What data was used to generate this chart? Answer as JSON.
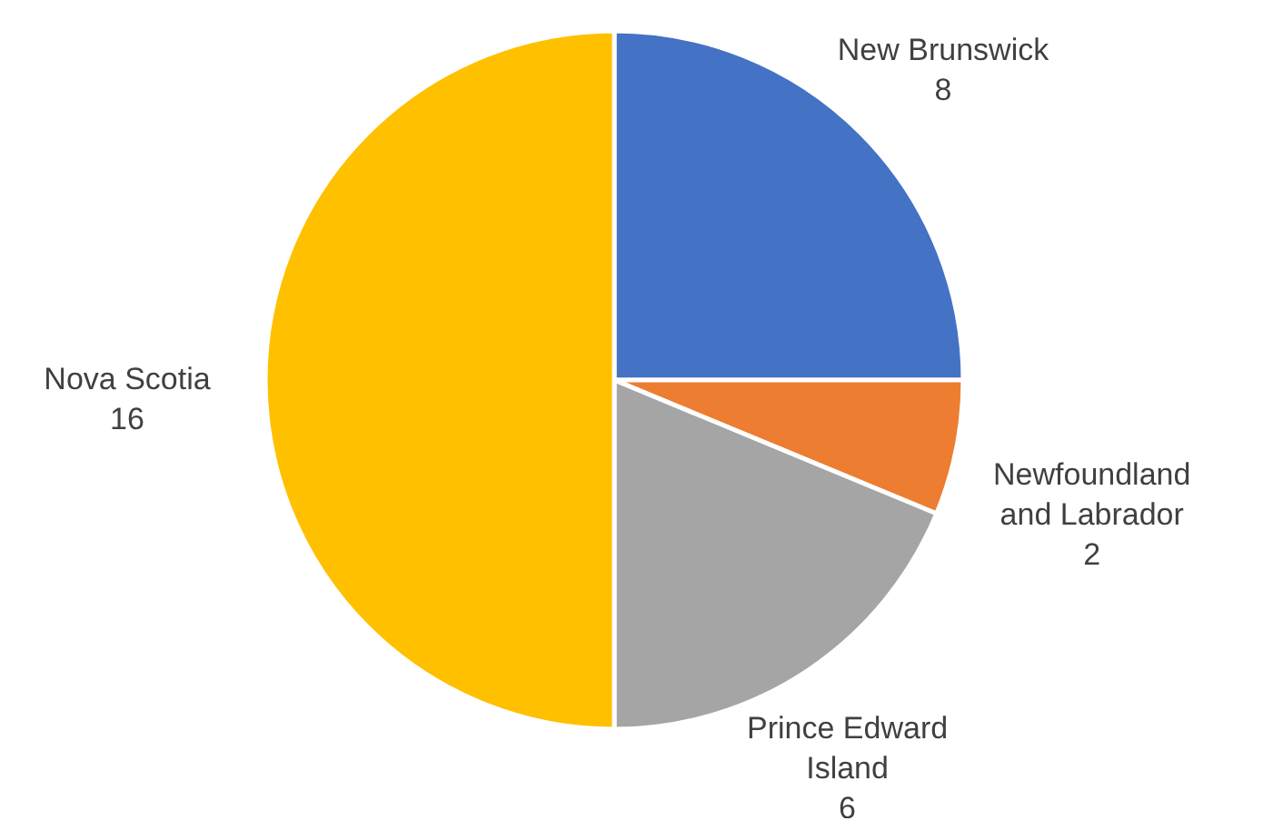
{
  "chart_data": {
    "type": "pie",
    "categories": [
      "New Brunswick",
      "Newfoundland and Labrador",
      "Prince Edward Island",
      "Nova Scotia"
    ],
    "values": [
      8,
      2,
      6,
      16
    ],
    "colors": [
      "#4472c4",
      "#ed7d31",
      "#a5a5a5",
      "#ffc000"
    ],
    "data_labels": true
  }
}
